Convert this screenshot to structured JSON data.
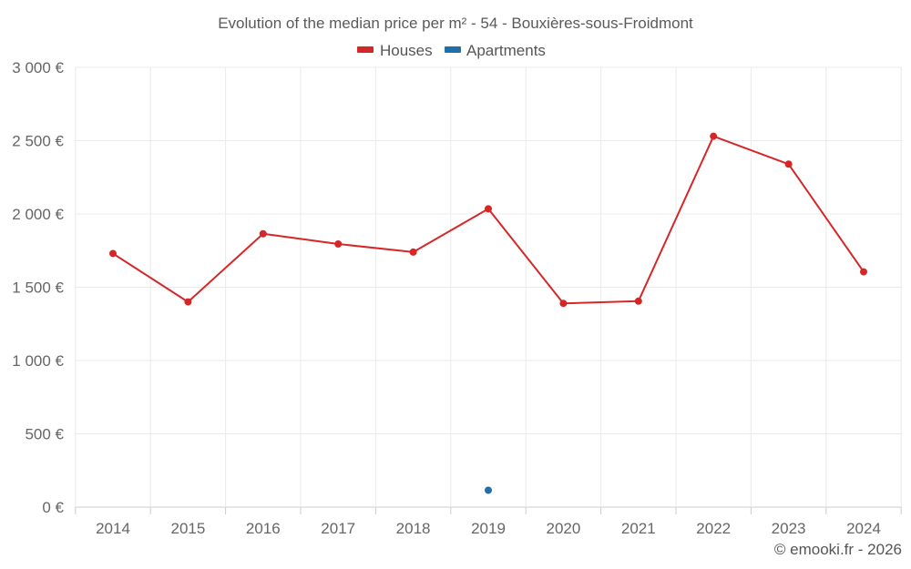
{
  "chart_data": {
    "type": "line",
    "title": "Evolution of the median price per m² - 54 - Bouxières-sous-Froidmont",
    "categories": [
      "2014",
      "2015",
      "2016",
      "2017",
      "2018",
      "2019",
      "2020",
      "2021",
      "2022",
      "2023",
      "2024"
    ],
    "y_ticks": [
      "0 €",
      "500 €",
      "1 000 €",
      "1 500 €",
      "2 000 €",
      "2 500 €",
      "3 000 €"
    ],
    "ylim": [
      0,
      3000
    ],
    "grid": true,
    "legend_position": "top-center",
    "series": [
      {
        "name": "Houses",
        "color": "#d62728",
        "values": [
          1730,
          1400,
          1865,
          1795,
          1740,
          2035,
          1390,
          1405,
          2530,
          2340,
          1605
        ]
      },
      {
        "name": "Apartments",
        "color": "#1f6fa8",
        "values": [
          null,
          null,
          null,
          null,
          null,
          115,
          null,
          null,
          null,
          null,
          null
        ]
      }
    ]
  },
  "legend": {
    "houses": "Houses",
    "apartments": "Apartments"
  },
  "credit": "© emooki.fr - 2026"
}
